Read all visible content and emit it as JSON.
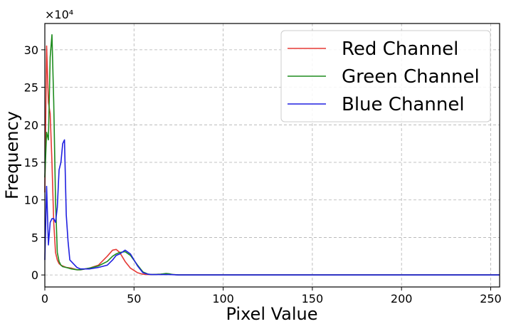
{
  "chart_data": {
    "type": "line",
    "title": "",
    "xlabel": "Pixel Value",
    "ylabel": "Frequency",
    "y_multiplier_label": "×10⁴",
    "xlim": [
      0,
      255
    ],
    "ylim": [
      -1.6,
      33.5
    ],
    "x_ticks": [
      0,
      50,
      100,
      150,
      200,
      250
    ],
    "x_tick_labels": [
      "0",
      "50",
      "100",
      "150",
      "200",
      "250"
    ],
    "y_ticks": [
      0,
      5,
      10,
      15,
      20,
      25,
      30
    ],
    "y_tick_labels": [
      "0",
      "5",
      "10",
      "15",
      "20",
      "25",
      "30"
    ],
    "grid": true,
    "legend_position": "top-right",
    "series": [
      {
        "name": "Red Channel",
        "color": "#e53935",
        "x": [
          0,
          1,
          2,
          3,
          4,
          5,
          6,
          7,
          8,
          9,
          10,
          12,
          15,
          18,
          20,
          25,
          30,
          35,
          38,
          40,
          42,
          45,
          48,
          52,
          55,
          58,
          60,
          65,
          68,
          70,
          72,
          75,
          100,
          150,
          200,
          255
        ],
        "y": [
          11,
          30.5,
          23,
          21.5,
          15,
          7,
          3,
          2,
          1.5,
          1.3,
          1.2,
          1.0,
          0.9,
          0.7,
          0.7,
          0.9,
          1.3,
          2.5,
          3.3,
          3.4,
          3.0,
          1.8,
          0.9,
          0.3,
          0.1,
          0.05,
          0.05,
          0.1,
          0.15,
          0.1,
          0.05,
          0,
          0,
          0,
          0,
          0
        ]
      },
      {
        "name": "Green Channel",
        "color": "#1e8c1e",
        "x": [
          0,
          1,
          2,
          3,
          4,
          5,
          6,
          7,
          8,
          9,
          10,
          12,
          15,
          18,
          20,
          25,
          30,
          35,
          38,
          40,
          42,
          45,
          48,
          52,
          55,
          58,
          60,
          65,
          68,
          70,
          72,
          75,
          100,
          150,
          200,
          255
        ],
        "y": [
          13,
          19,
          18,
          29,
          32,
          23,
          10,
          3,
          1.8,
          1.3,
          1.1,
          1.0,
          0.8,
          0.7,
          0.7,
          0.9,
          1.2,
          1.8,
          2.5,
          2.8,
          3.0,
          3.1,
          2.6,
          1.3,
          0.4,
          0.1,
          0.05,
          0.1,
          0.2,
          0.15,
          0.05,
          0,
          0,
          0,
          0,
          0
        ]
      },
      {
        "name": "Blue Channel",
        "color": "#2020e0",
        "x": [
          0,
          1,
          2,
          3,
          4,
          5,
          6,
          7,
          8,
          9,
          10,
          11,
          12,
          13,
          14,
          16,
          18,
          20,
          25,
          30,
          35,
          38,
          40,
          42,
          45,
          48,
          52,
          55,
          58,
          60,
          65,
          70,
          75,
          100,
          150,
          200,
          255
        ],
        "y": [
          2,
          11.8,
          4,
          7,
          7.5,
          7.5,
          7,
          9,
          14,
          15,
          17.5,
          18,
          8,
          4.5,
          2,
          1.5,
          1.0,
          0.8,
          0.8,
          1.0,
          1.3,
          2.0,
          2.6,
          2.8,
          3.3,
          2.8,
          1.2,
          0.3,
          0.1,
          0.05,
          0.05,
          0.05,
          0,
          0,
          0,
          0,
          0
        ]
      }
    ]
  }
}
